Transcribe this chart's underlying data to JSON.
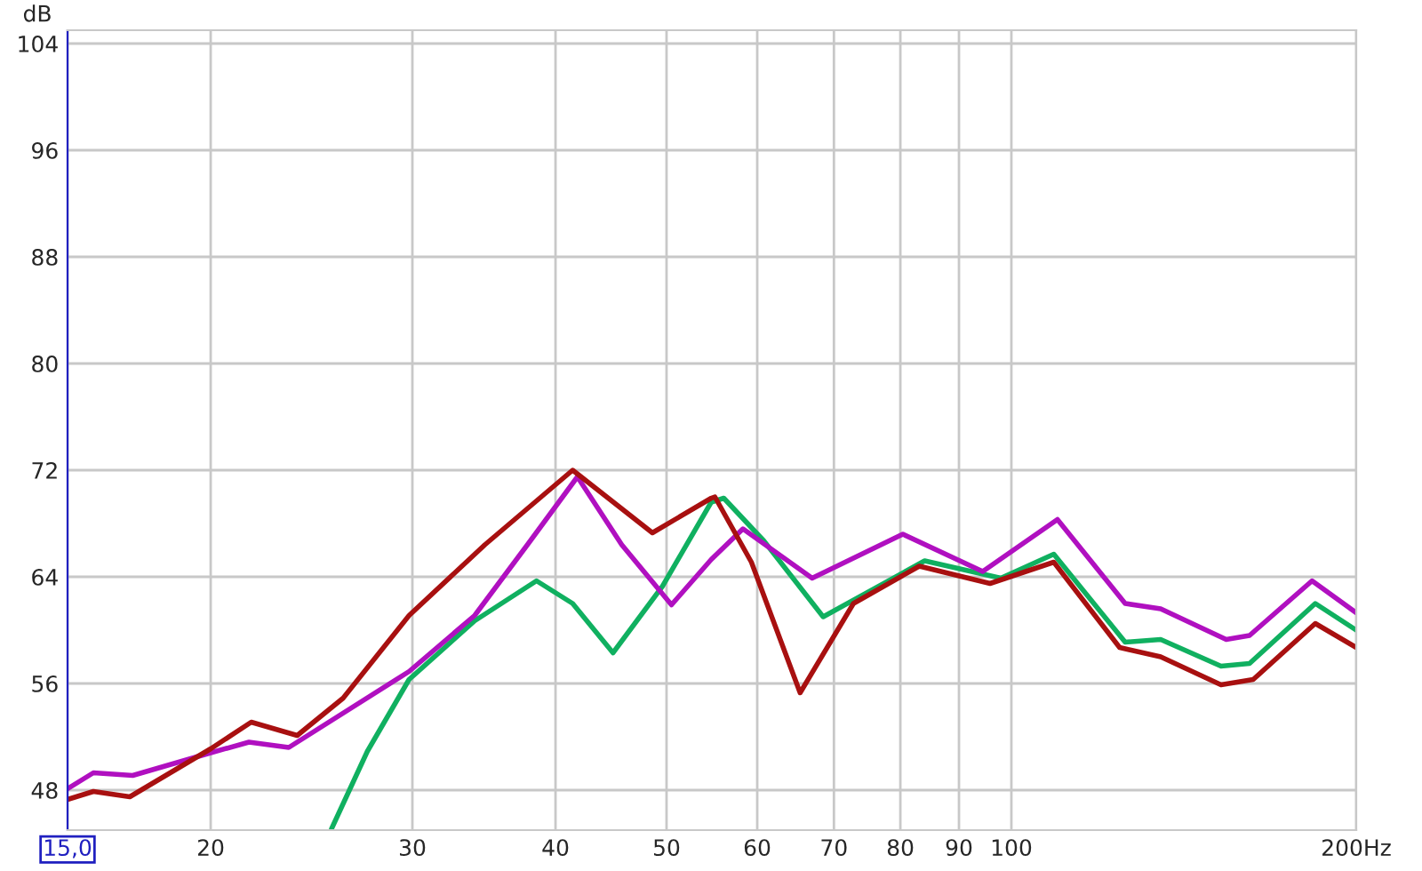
{
  "chart_data": {
    "type": "line",
    "ylabel": "dB",
    "log": "x",
    "grid": true,
    "legend": false,
    "marker": "none",
    "line_style": "solid",
    "xlim": [
      15,
      200
    ],
    "ylim": [
      45,
      105
    ],
    "xticks": [
      {
        "value": 15,
        "label": "15,0"
      },
      20,
      30,
      40,
      50,
      60,
      70,
      80,
      90,
      100,
      {
        "value": 200,
        "label": "200Hz"
      }
    ],
    "yticks": [
      48,
      56,
      64,
      72,
      80,
      88,
      96,
      104
    ],
    "series": [
      {
        "color": "#10b060",
        "x": [
          25.5,
          27.4,
          29.8,
          34.0,
          38.5,
          41.4,
          44.9,
          49.6,
          54.7,
          56.1,
          60.8,
          68.5,
          84.0,
          97.9,
          108.9,
          125.7,
          135.0,
          152.4,
          161.4,
          184.2,
          200
        ],
        "values": [
          45.1,
          50.9,
          56.3,
          60.7,
          63.7,
          62.0,
          58.3,
          63.3,
          69.6,
          69.9,
          66.7,
          61.0,
          65.2,
          63.9,
          65.7,
          59.1,
          59.3,
          57.3,
          57.5,
          62.0,
          60.0
        ]
      },
      {
        "color": "#b010c0",
        "x": [
          15.0,
          15.8,
          17.1,
          20.0,
          21.6,
          23.4,
          29.8,
          34.0,
          37.8,
          41.8,
          45.7,
          50.5,
          54.7,
          58.3,
          67.0,
          80.4,
          94.4,
          109.7,
          125.7,
          135.0,
          154.0,
          161.4,
          183.0,
          200
        ],
        "values": [
          48.1,
          49.3,
          49.1,
          50.8,
          51.6,
          51.2,
          56.9,
          61.1,
          66.4,
          71.5,
          66.4,
          61.9,
          65.3,
          67.6,
          63.9,
          67.2,
          64.4,
          68.3,
          62.0,
          61.6,
          59.3,
          59.6,
          63.7,
          61.3
        ]
      },
      {
        "color": "#a81010",
        "x": [
          15.0,
          15.8,
          17.0,
          20.0,
          21.7,
          23.8,
          26.1,
          29.8,
          34.7,
          41.4,
          48.6,
          54.7,
          55.1,
          59.3,
          65.4,
          72.8,
          83.1,
          95.8,
          108.9,
          124.3,
          135.0,
          152.4,
          162.6,
          184.2,
          200
        ],
        "values": [
          47.3,
          47.9,
          47.5,
          51.1,
          53.1,
          52.1,
          54.9,
          61.1,
          66.4,
          72.0,
          67.3,
          69.9,
          70.0,
          65.1,
          55.3,
          62.0,
          64.8,
          63.5,
          65.1,
          58.7,
          58.0,
          55.9,
          56.3,
          60.5,
          58.7
        ]
      }
    ]
  }
}
